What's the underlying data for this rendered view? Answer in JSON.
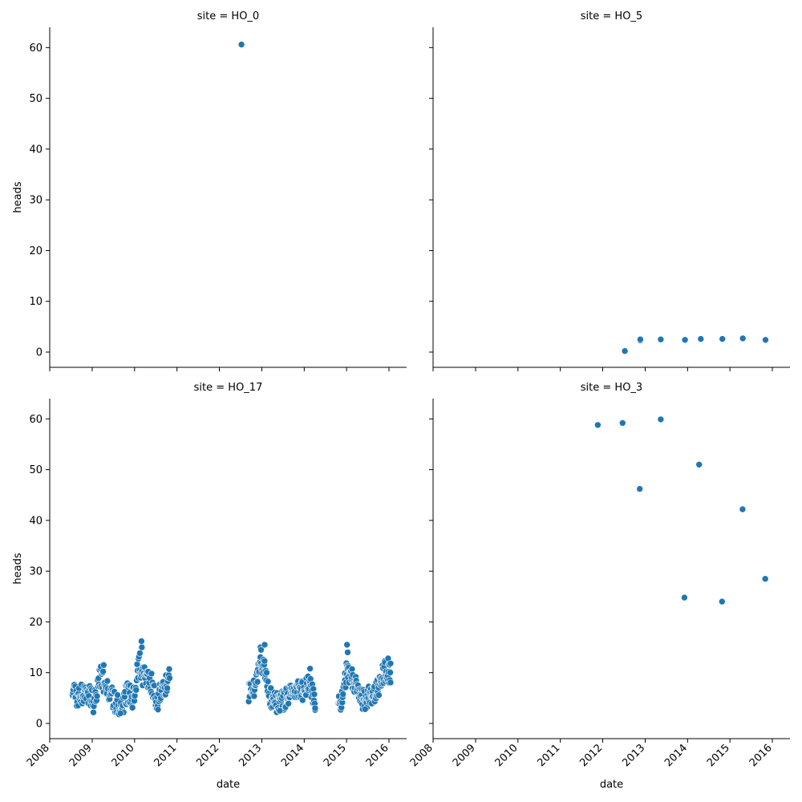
{
  "chart_data": {
    "type": "scatter",
    "facet_grid": {
      "rows": 2,
      "cols": 2,
      "sharex": true,
      "sharey": true
    },
    "marker_color": "#1f77b4",
    "marker_edge": "#ffffff",
    "xlabel": "date",
    "ylabel": "heads",
    "xlim": [
      "2008-01-01",
      "2016-06-01"
    ],
    "ylim": [
      -3,
      64
    ],
    "x_ticks": [
      "2008",
      "2009",
      "2010",
      "2011",
      "2012",
      "2013",
      "2014",
      "2015",
      "2016"
    ],
    "y_ticks": [
      0,
      10,
      20,
      30,
      40,
      50,
      60
    ],
    "panels": [
      {
        "title": "site = HO_0",
        "points": [
          [
            "2012-07-10",
            60.6
          ]
        ]
      },
      {
        "title": "site = HO_5",
        "points": [
          [
            "2012-07-10",
            0.2
          ],
          [
            "2012-11-20",
            2.3
          ],
          [
            "2012-11-20",
            2.5
          ],
          [
            "2013-05-15",
            2.5
          ],
          [
            "2013-12-10",
            2.4
          ],
          [
            "2014-04-25",
            2.6
          ],
          [
            "2014-10-28",
            2.6
          ],
          [
            "2015-04-22",
            2.7
          ],
          [
            "2015-11-03",
            2.4
          ]
        ]
      },
      {
        "title": "site = HO_17",
        "segments": [
          {
            "start": "2008-07-15",
            "end": "2010-10-30",
            "keyframes": [
              [
                "2008-07-15",
                6.0
              ],
              [
                "2008-09-01",
                5.0
              ],
              [
                "2008-11-15",
                6.5
              ],
              [
                "2009-01-10",
                4.0
              ],
              [
                "2009-03-15",
                9.5
              ],
              [
                "2009-05-15",
                6.5
              ],
              [
                "2009-07-20",
                4.0
              ],
              [
                "2009-09-01",
                3.0
              ],
              [
                "2009-11-01",
                6.0
              ],
              [
                "2009-12-20",
                5.0
              ],
              [
                "2010-02-10",
                12.5
              ],
              [
                "2010-03-15",
                9.0
              ],
              [
                "2010-05-15",
                8.5
              ],
              [
                "2010-07-15",
                4.5
              ],
              [
                "2010-09-01",
                7.0
              ],
              [
                "2010-10-30",
                9.0
              ]
            ],
            "spread": 2.2,
            "count": 210
          },
          {
            "start": "2012-09-10",
            "end": "2014-04-05",
            "keyframes": [
              [
                "2012-09-10",
                6.0
              ],
              [
                "2012-11-01",
                7.5
              ],
              [
                "2012-12-15",
                12.0
              ],
              [
                "2013-01-25",
                11.0
              ],
              [
                "2013-03-01",
                5.5
              ],
              [
                "2013-05-01",
                4.0
              ],
              [
                "2013-07-01",
                4.5
              ],
              [
                "2013-09-01",
                5.5
              ],
              [
                "2013-11-01",
                6.5
              ],
              [
                "2014-01-01",
                6.5
              ],
              [
                "2014-02-15",
                8.0
              ],
              [
                "2014-04-05",
                3.5
              ]
            ],
            "spread": 2.0,
            "count": 160
          },
          {
            "start": "2014-10-20",
            "end": "2016-01-15",
            "keyframes": [
              [
                "2014-10-20",
                4.0
              ],
              [
                "2014-12-01",
                5.5
              ],
              [
                "2015-01-01",
                10.5
              ],
              [
                "2015-02-15",
                9.0
              ],
              [
                "2015-04-01",
                6.5
              ],
              [
                "2015-06-01",
                4.5
              ],
              [
                "2015-08-01",
                5.5
              ],
              [
                "2015-10-01",
                7.5
              ],
              [
                "2015-12-01",
                10.5
              ],
              [
                "2016-01-15",
                9.5
              ]
            ],
            "spread": 2.2,
            "count": 140
          }
        ],
        "points": [
          [
            "2010-03-01",
            16.2
          ],
          [
            "2010-03-05",
            15.0
          ],
          [
            "2009-04-10",
            11.5
          ],
          [
            "2012-12-20",
            15.0
          ],
          [
            "2013-01-25",
            15.5
          ],
          [
            "2012-12-25",
            14.5
          ],
          [
            "2014-02-20",
            10.8
          ],
          [
            "2015-01-05",
            15.5
          ],
          [
            "2015-01-10",
            14.0
          ],
          [
            "2014-04-05",
            3.0
          ],
          [
            "2015-12-25",
            12.8
          ],
          [
            "2016-01-15",
            11.8
          ],
          [
            "2009-09-01",
            2.0
          ],
          [
            "2013-06-05",
            2.5
          ],
          [
            "2015-06-10",
            2.8
          ]
        ]
      },
      {
        "title": "site = HO_3",
        "points": [
          [
            "2011-11-20",
            58.8
          ],
          [
            "2012-06-20",
            59.2
          ],
          [
            "2012-11-15",
            46.2
          ],
          [
            "2013-05-15",
            59.9
          ],
          [
            "2013-12-05",
            24.8
          ],
          [
            "2014-04-10",
            51.0
          ],
          [
            "2014-10-25",
            24.0
          ],
          [
            "2015-04-20",
            42.2
          ],
          [
            "2015-11-01",
            28.5
          ]
        ]
      }
    ]
  }
}
